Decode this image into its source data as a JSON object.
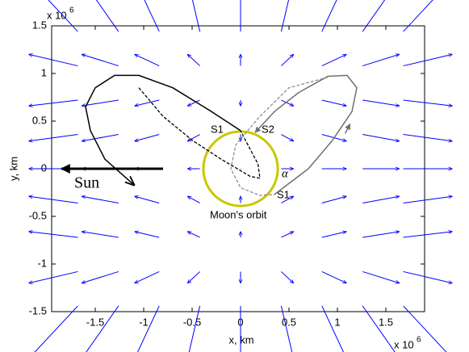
{
  "chart_data": {
    "type": "vector-field",
    "xlabel": "x, km",
    "ylabel": "y, km",
    "x_multiplier": {
      "base": "x 10",
      "exponent": "6"
    },
    "y_multiplier": {
      "base": "x 10",
      "exponent": "6"
    },
    "xlim": [
      -1950000,
      1900000
    ],
    "ylim": [
      -1500000,
      1500000
    ],
    "xticks": [
      {
        "value": -1500000,
        "label": "-1.5"
      },
      {
        "value": -1000000,
        "label": "-1"
      },
      {
        "value": -500000,
        "label": "-0.5"
      },
      0,
      {
        "value": 500000,
        "label": "0.5"
      },
      {
        "value": 1000000,
        "label": "1"
      },
      {
        "value": 1500000,
        "label": "1.5"
      }
    ],
    "yticks": [
      {
        "value": -1500000,
        "label": "-1.5"
      },
      {
        "value": -1000000,
        "label": "-1"
      },
      {
        "value": -500000,
        "label": "-0.5"
      },
      0,
      {
        "value": 500000,
        "label": "0.5"
      },
      {
        "value": 1000000,
        "label": "1"
      },
      {
        "value": 1500000,
        "label": "1.5"
      }
    ],
    "field": {
      "color": "#0000ff",
      "x": [
        -1680000,
        -1260000,
        -840000,
        -420000,
        0,
        420000,
        840000,
        1260000,
        1680000
      ],
      "y": [
        -1440000,
        -1080000,
        -720000,
        -360000,
        0,
        360000,
        720000,
        1080000,
        1440000
      ],
      "u": [
        [
          -504000,
          -378000,
          -252000,
          -126000,
          0,
          126000,
          252000,
          378000,
          504000
        ],
        [
          -504000,
          -378000,
          -252000,
          -126000,
          0,
          126000,
          252000,
          378000,
          504000
        ],
        [
          -504000,
          -378000,
          -252000,
          -126000,
          0,
          126000,
          252000,
          378000,
          504000
        ],
        [
          -504000,
          -378000,
          -252000,
          -126000,
          0,
          126000,
          252000,
          378000,
          504000
        ],
        [
          -504000,
          -378000,
          -252000,
          -126000,
          0,
          126000,
          252000,
          378000,
          504000
        ],
        [
          -504000,
          -378000,
          -252000,
          -126000,
          0,
          126000,
          252000,
          378000,
          504000
        ],
        [
          -504000,
          -378000,
          -252000,
          -126000,
          0,
          126000,
          252000,
          378000,
          504000
        ],
        [
          -504000,
          -378000,
          -252000,
          -126000,
          0,
          126000,
          252000,
          378000,
          504000
        ],
        [
          -504000,
          -378000,
          -252000,
          -126000,
          0,
          126000,
          252000,
          378000,
          504000
        ]
      ],
      "v": [
        [
          -550000,
          -550000,
          -550000,
          -550000,
          -550000,
          -550000,
          -550000,
          -550000,
          -550000
        ],
        [
          -120000,
          -120000,
          -120000,
          -120000,
          -120000,
          -120000,
          -120000,
          -120000,
          -120000
        ],
        [
          60000,
          60000,
          60000,
          60000,
          60000,
          60000,
          60000,
          60000,
          60000
        ],
        [
          70000,
          70000,
          70000,
          70000,
          70000,
          70000,
          70000,
          70000,
          70000
        ],
        [
          0,
          0,
          0,
          0,
          0,
          0,
          0,
          0,
          0
        ],
        [
          -70000,
          -70000,
          -70000,
          -70000,
          -70000,
          -70000,
          -70000,
          -70000,
          -70000
        ],
        [
          -60000,
          -60000,
          -60000,
          -60000,
          -60000,
          -60000,
          -60000,
          -60000,
          -60000
        ],
        [
          120000,
          120000,
          120000,
          120000,
          120000,
          120000,
          120000,
          120000,
          120000
        ],
        [
          550000,
          550000,
          550000,
          550000,
          550000,
          550000,
          550000,
          550000,
          550000
        ]
      ]
    },
    "orbits": [
      {
        "color": "#000000",
        "style": "solid",
        "arrow": true,
        "x": [
          0,
          -300000,
          -700000,
          -1050000,
          -1300000,
          -1500000,
          -1600000,
          -1550000,
          -1400000,
          -1100000
        ],
        "y": [
          400000,
          600000,
          850000,
          980000,
          980000,
          850000,
          650000,
          400000,
          100000,
          -170000
        ]
      },
      {
        "color": "#000000",
        "style": "dashed",
        "arrow": false,
        "x": [
          -1050000,
          -800000,
          -500000,
          -200000,
          100000,
          200000,
          180000,
          50000,
          0
        ],
        "y": [
          850000,
          550000,
          300000,
          100000,
          -80000,
          -100000,
          50000,
          300000,
          400000
        ]
      },
      {
        "color": "#707070",
        "style": "solid",
        "arrow": true,
        "x": [
          350000,
          700000,
          950000,
          1150000,
          1200000,
          1100000,
          900000,
          600000,
          350000,
          150000
        ],
        "y": [
          -270000,
          0,
          300000,
          600000,
          850000,
          980000,
          970000,
          800000,
          600000,
          380000
        ]
      },
      {
        "color": "#909090",
        "style": "dashed",
        "arrow": false,
        "x": [
          900000,
          500000,
          200000,
          -50000,
          -100000,
          0,
          200000,
          350000
        ],
        "y": [
          960000,
          850000,
          550000,
          250000,
          0,
          -200000,
          -280000,
          -270000
        ]
      }
    ],
    "direction_arrows": [
      {
        "color": "#707070",
        "x": [
          1080000,
          1130000
        ],
        "y": [
          370000,
          470000
        ]
      }
    ],
    "moon_orbit": {
      "radius": 384000,
      "color": "#c8c800"
    },
    "sun_arrow": {
      "label": "Sun",
      "x": [
        -800000,
        -1850000
      ],
      "y": [
        0,
        0
      ]
    },
    "annotations": [
      "S1",
      "S2",
      "α",
      "S1",
      "Moon's orbit"
    ]
  }
}
